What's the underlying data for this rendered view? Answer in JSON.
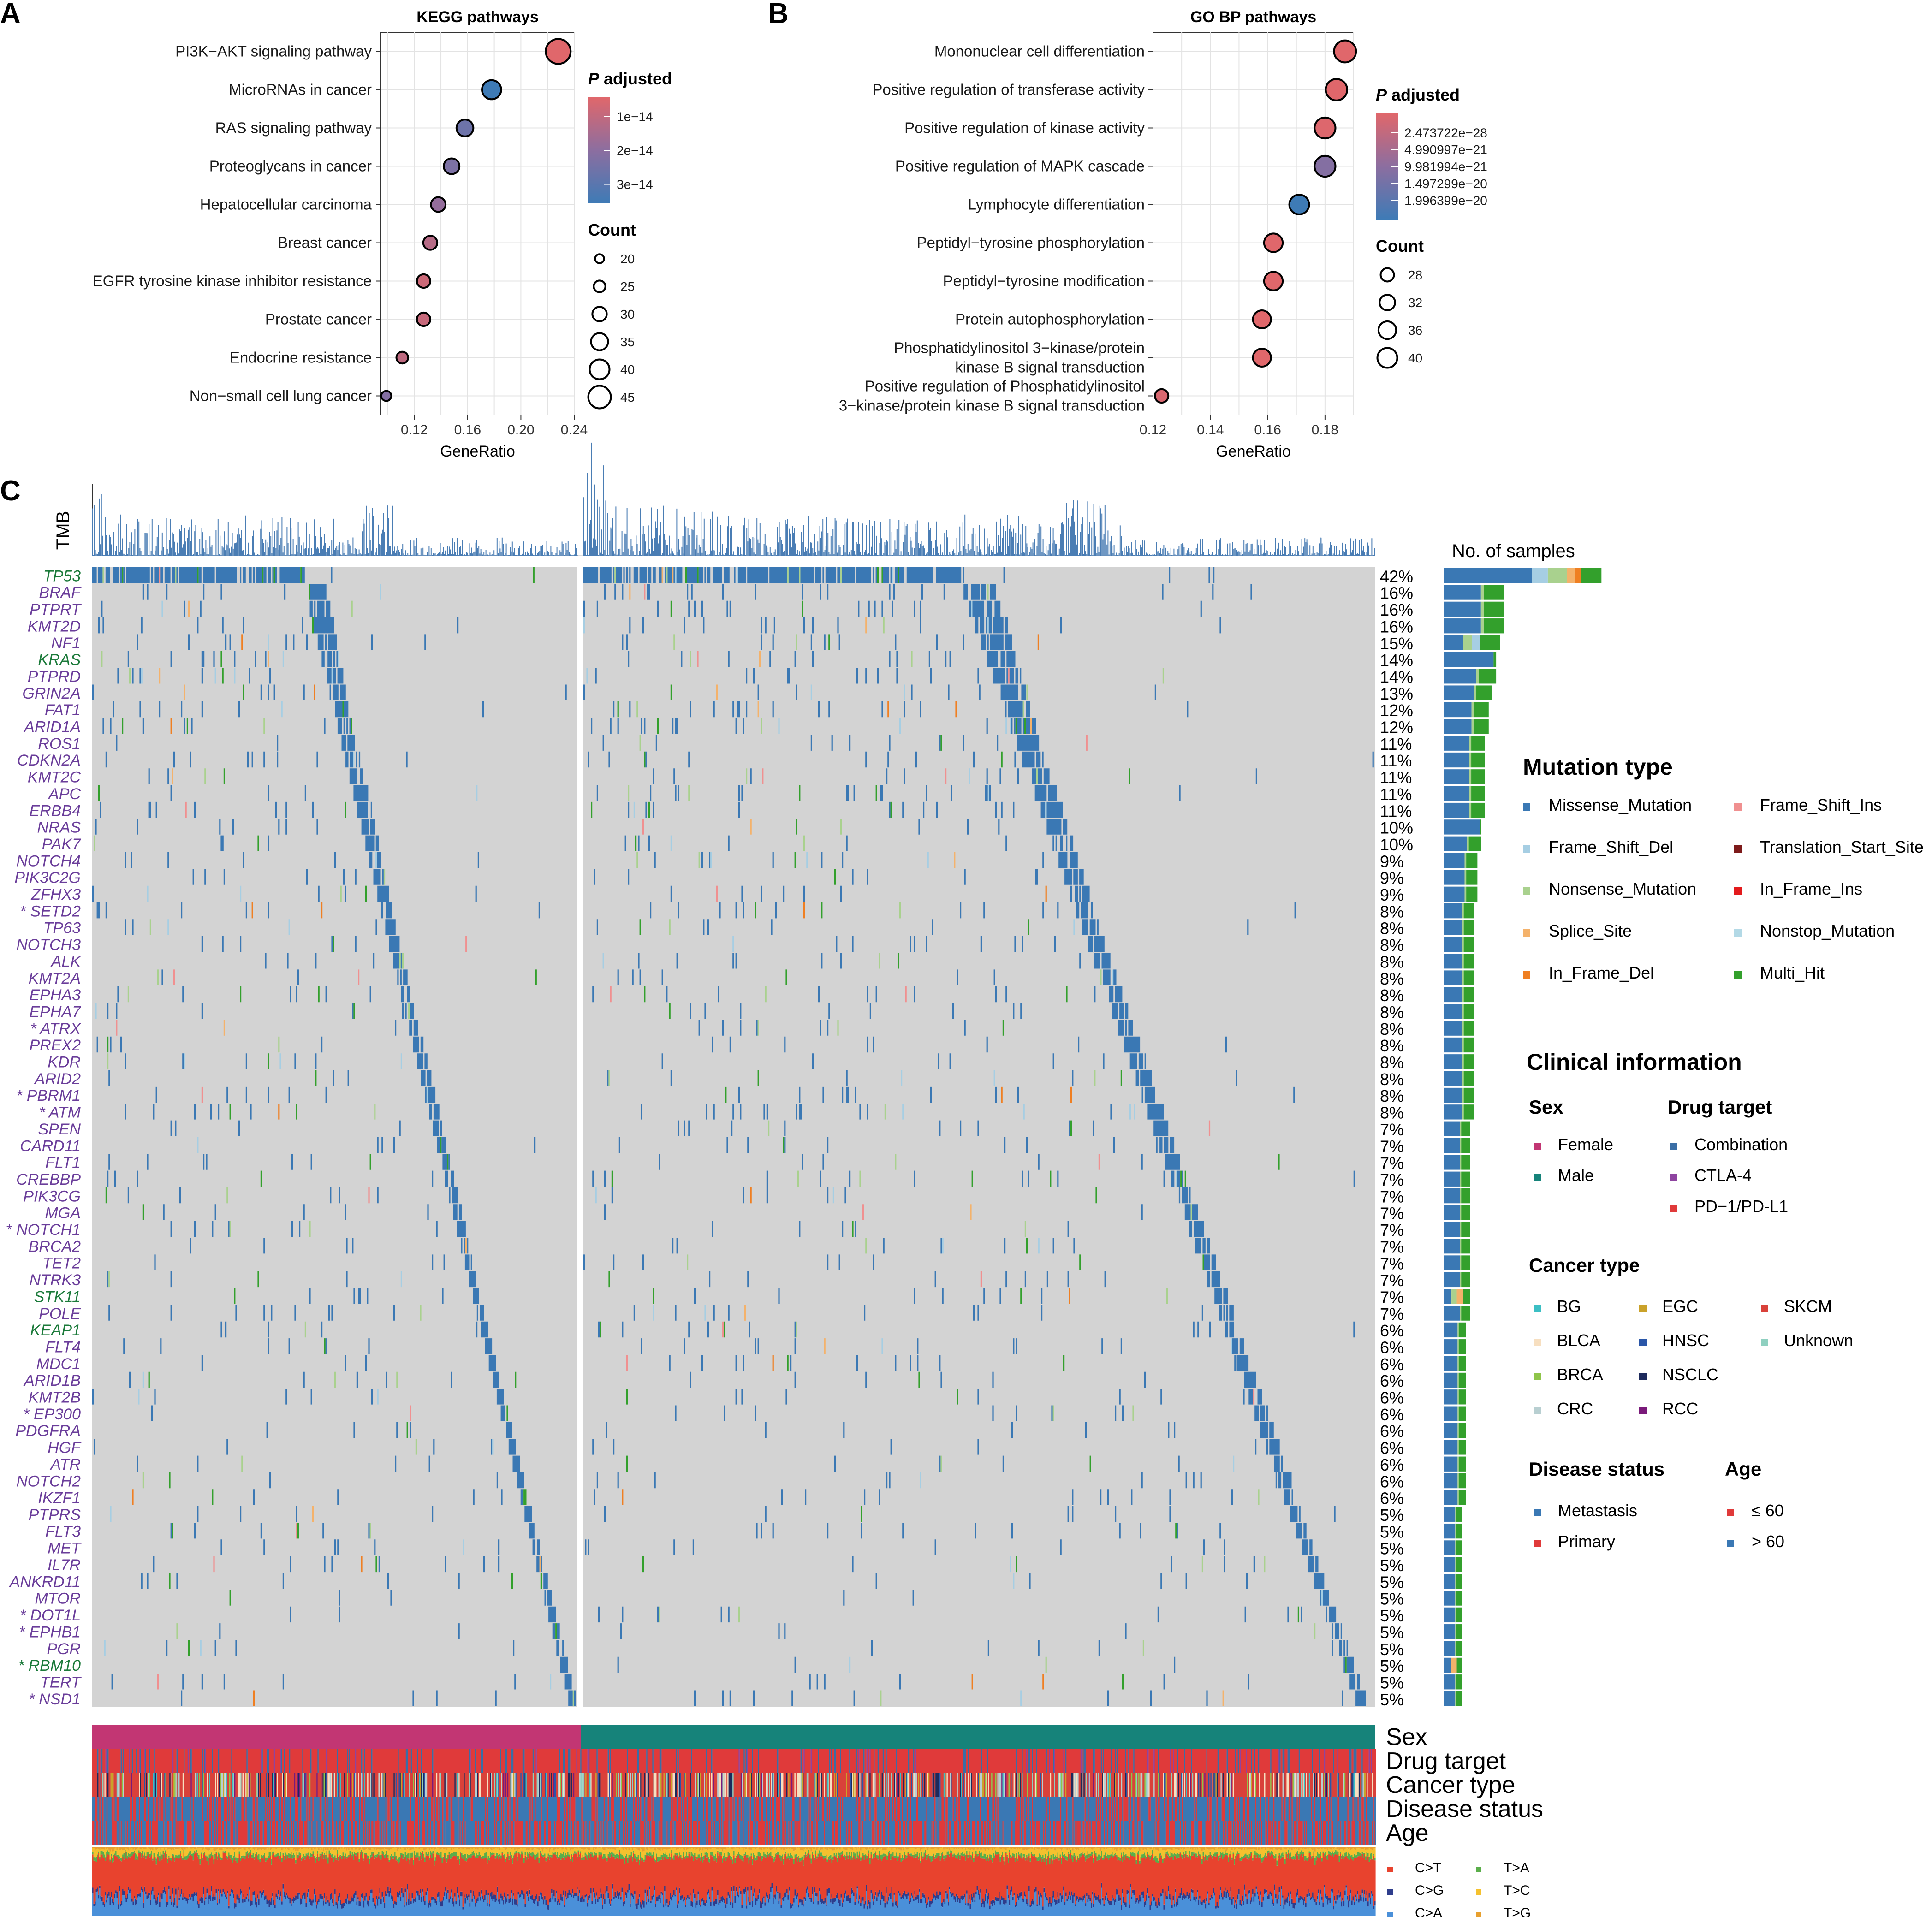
{
  "panel_labels": {
    "a": "A",
    "b": "B",
    "c": "C"
  },
  "colors": {
    "missense": "#3a78b4",
    "frameshift_del": "#a6cee3",
    "nonsense": "#a9d18e",
    "splice": "#f4b26b",
    "inframe_del": "#ef7f22",
    "frameshift_ins": "#f09090",
    "translation_start": "#7d1a1a",
    "inframe_ins": "#e31a1c",
    "nonstop": "#b3d9e6",
    "multi_hit": "#33a02c",
    "grid_bg": "#d3d3d3",
    "tmb": "#4a7db4",
    "female": "#c23673",
    "male": "#16837a",
    "padj_high": "#e0676b",
    "padj_low": "#3e7bb6",
    "gene_purple": "#6a3d9a",
    "gene_green": "#1b7a3a"
  },
  "chart_data": [
    {
      "type": "scatter",
      "id": "kegg",
      "title": "KEGG pathways",
      "xlabel": "GeneRatio",
      "xlim": [
        0.095,
        0.24
      ],
      "xticks": [
        "0.12",
        "0.16",
        "0.20",
        "0.24"
      ],
      "xtick_values": [
        0.12,
        0.16,
        0.2,
        0.24
      ],
      "categories": [
        "PI3K−AKT signaling pathway",
        "MicroRNAs in cancer",
        "RAS signaling pathway",
        "Proteoglycans in cancer",
        "Hepatocellular carcinoma",
        "Breast cancer",
        "EGFR tyrosine kinase inhibitor resistance",
        "Prostate cancer",
        "Endocrine resistance",
        "Non−small cell lung cancer"
      ],
      "x": [
        0.228,
        0.178,
        0.158,
        0.148,
        0.138,
        0.132,
        0.127,
        0.127,
        0.111,
        0.099
      ],
      "count": [
        47,
        37,
        33,
        31,
        29,
        28,
        27,
        27,
        24,
        21
      ],
      "padj_frac": [
        0.0,
        1.0,
        0.7,
        0.6,
        0.45,
        0.25,
        0.12,
        0.15,
        0.2,
        0.55
      ],
      "legend": {
        "color_title_italic": "P",
        "color_title": " adjusted",
        "color_ticks": [
          "1e−14",
          "2e−14",
          "3e−14"
        ],
        "size_title": "Count",
        "size_ticks": [
          "20",
          "25",
          "30",
          "35",
          "40",
          "45"
        ],
        "size_values": [
          20,
          25,
          30,
          35,
          40,
          45
        ]
      }
    },
    {
      "type": "scatter",
      "id": "gobp",
      "title": "GO BP pathways",
      "xlabel": "GeneRatio",
      "xlim": [
        0.12,
        0.19
      ],
      "xticks": [
        "0.12",
        "0.14",
        "0.16",
        "0.18"
      ],
      "xtick_values": [
        0.12,
        0.14,
        0.16,
        0.18
      ],
      "categories": [
        "Mononuclear cell differentiation",
        "Positive regulation of transferase activity",
        "Positive regulation of kinase activity",
        "Positive regulation of MAPK cascade",
        "Lymphocyte differentiation",
        "Peptidyl−tyrosine phosphorylation",
        "Peptidyl−tyrosine modification",
        "Protein autophosphorylation",
        "Phosphatidylinositol 3−kinase/protein\nkinase B signal transduction",
        "Positive regulation of Phosphatidylinositol\n3−kinase/protein kinase B signal transduction"
      ],
      "x": [
        0.187,
        0.184,
        0.18,
        0.18,
        0.171,
        0.162,
        0.162,
        0.158,
        0.158,
        0.123
      ],
      "count": [
        42,
        41,
        40,
        40,
        38,
        36,
        36,
        35,
        35,
        27
      ],
      "padj_frac": [
        0.0,
        0.0,
        0.02,
        0.55,
        1.0,
        0.0,
        0.0,
        0.0,
        0.0,
        0.05
      ],
      "legend": {
        "color_title_italic": "P",
        "color_title": " adjusted",
        "color_ticks": [
          "2.473722e−28",
          "4.990997e−21",
          "9.981994e−21",
          "1.497299e−20",
          "1.996399e−20"
        ],
        "size_title": "Count",
        "size_ticks": [
          "28",
          "32",
          "36",
          "40"
        ],
        "size_values": [
          28,
          32,
          36,
          40
        ]
      }
    },
    {
      "type": "heatmap",
      "id": "oncoplot",
      "tmb_label": "TMB",
      "samples_label": "No. of samples",
      "genes": [
        "TP53",
        "BRAF",
        "PTPRT",
        "KMT2D",
        "NF1",
        "KRAS",
        "PTPRD",
        "GRIN2A",
        "FAT1",
        "ARID1A",
        "ROS1",
        "CDKN2A",
        "KMT2C",
        "APC",
        "ERBB4",
        "NRAS",
        "PAK7",
        "NOTCH4",
        "PIK3C2G",
        "ZFHX3",
        "* SETD2",
        "TP63",
        "NOTCH3",
        "ALK",
        "KMT2A",
        "EPHA3",
        "EPHA7",
        "* ATRX",
        "PREX2",
        "KDR",
        "ARID2",
        "* PBRM1",
        "* ATM",
        "SPEN",
        "CARD11",
        "FLT1",
        "CREBBP",
        "PIK3CG",
        "MGA",
        "* NOTCH1",
        "BRCA2",
        "TET2",
        "NTRK3",
        "STK11",
        "POLE",
        "KEAP1",
        "FLT4",
        "MDC1",
        "ARID1B",
        "KMT2B",
        "* EP300",
        "PDGFRA",
        "HGF",
        "ATR",
        "NOTCH2",
        "IKZF1",
        "PTPRS",
        "FLT3",
        "MET",
        "IL7R",
        "ANKRD11",
        "MTOR",
        "* DOT1L",
        "* EPHB1",
        "PGR",
        "* RBM10",
        "TERT",
        "* NSD1"
      ],
      "gene_color": [
        "green",
        "purple",
        "purple",
        "purple",
        "purple",
        "green",
        "purple",
        "purple",
        "purple",
        "purple",
        "purple",
        "purple",
        "purple",
        "purple",
        "purple",
        "purple",
        "purple",
        "purple",
        "purple",
        "purple",
        "purple",
        "purple",
        "purple",
        "purple",
        "purple",
        "purple",
        "purple",
        "purple",
        "purple",
        "purple",
        "purple",
        "purple",
        "purple",
        "purple",
        "purple",
        "purple",
        "purple",
        "purple",
        "purple",
        "purple",
        "purple",
        "purple",
        "purple",
        "green",
        "purple",
        "green",
        "purple",
        "purple",
        "purple",
        "purple",
        "purple",
        "purple",
        "purple",
        "purple",
        "purple",
        "purple",
        "purple",
        "purple",
        "purple",
        "purple",
        "purple",
        "purple",
        "purple",
        "purple",
        "purple",
        "green",
        "purple",
        "purple"
      ],
      "percents": [
        "42%",
        "16%",
        "16%",
        "16%",
        "15%",
        "14%",
        "14%",
        "13%",
        "12%",
        "12%",
        "11%",
        "11%",
        "11%",
        "11%",
        "11%",
        "10%",
        "10%",
        "9%",
        "9%",
        "9%",
        "8%",
        "8%",
        "8%",
        "8%",
        "8%",
        "8%",
        "8%",
        "8%",
        "8%",
        "8%",
        "8%",
        "8%",
        "8%",
        "7%",
        "7%",
        "7%",
        "7%",
        "7%",
        "7%",
        "7%",
        "7%",
        "7%",
        "7%",
        "7%",
        "7%",
        "6%",
        "6%",
        "6%",
        "6%",
        "6%",
        "6%",
        "6%",
        "6%",
        "6%",
        "6%",
        "6%",
        "5%",
        "5%",
        "5%",
        "5%",
        "5%",
        "5%",
        "5%",
        "5%",
        "5%",
        "5%",
        "5%",
        "5%"
      ],
      "percent_values": [
        42,
        16,
        16,
        16,
        15,
        14,
        14,
        13,
        12,
        12,
        11,
        11,
        11,
        11,
        11,
        10,
        10,
        9,
        9,
        9,
        8,
        8,
        8,
        8,
        8,
        8,
        8,
        8,
        8,
        8,
        8,
        8,
        8,
        7,
        7,
        7,
        7,
        7,
        7,
        7,
        7,
        7,
        7,
        7,
        7,
        6,
        6,
        6,
        6,
        6,
        6,
        6,
        6,
        6,
        6,
        6,
        5,
        5,
        5,
        5,
        5,
        5,
        5,
        5,
        5,
        5,
        5,
        5
      ],
      "annotation_tracks": [
        "Sex",
        "Drug target",
        "Cancer type",
        "Disease status",
        "Age"
      ]
    }
  ],
  "legends": {
    "mutation_type": {
      "title": "Mutation type",
      "items": [
        {
          "label": "Missense_Mutation",
          "color": "#3a78b4"
        },
        {
          "label": "Frame_Shift_Del",
          "color": "#a6cee3"
        },
        {
          "label": "Nonsense_Mutation",
          "color": "#a9d18e"
        },
        {
          "label": "Splice_Site",
          "color": "#f4b26b"
        },
        {
          "label": "In_Frame_Del",
          "color": "#ef7f22"
        },
        {
          "label": "Frame_Shift_Ins",
          "color": "#f09090"
        },
        {
          "label": "Translation_Start_Site",
          "color": "#7d1a1a"
        },
        {
          "label": "In_Frame_Ins",
          "color": "#e31a1c"
        },
        {
          "label": "Nonstop_Mutation",
          "color": "#b3d9e6"
        },
        {
          "label": "Multi_Hit",
          "color": "#33a02c"
        }
      ]
    },
    "clinical_title": "Clinical information",
    "sex": {
      "title": "Sex",
      "items": [
        {
          "label": "Female",
          "color": "#c23673"
        },
        {
          "label": "Male",
          "color": "#16837a"
        }
      ]
    },
    "drug_target": {
      "title": "Drug target",
      "items": [
        {
          "label": "Combination",
          "color": "#3a6ea5"
        },
        {
          "label": "CTLA-4",
          "color": "#8e44a0"
        },
        {
          "label": "PD−1/PD-L1",
          "color": "#e03a3a"
        }
      ]
    },
    "cancer_type": {
      "title": "Cancer type",
      "items": [
        {
          "label": "BG",
          "color": "#3cbfc4"
        },
        {
          "label": "BLCA",
          "color": "#f7dfc0"
        },
        {
          "label": "BRCA",
          "color": "#8fc54a"
        },
        {
          "label": "CRC",
          "color": "#b8cfd1"
        },
        {
          "label": "EGC",
          "color": "#caa22a"
        },
        {
          "label": "HNSC",
          "color": "#2a56a8"
        },
        {
          "label": "NSCLC",
          "color": "#1d2a5c"
        },
        {
          "label": "RCC",
          "color": "#7a1a7a"
        },
        {
          "label": "SKCM",
          "color": "#d9413a"
        },
        {
          "label": "Unknown",
          "color": "#8fd0c0"
        }
      ]
    },
    "disease_status": {
      "title": "Disease status",
      "items": [
        {
          "label": "Metastasis",
          "color": "#3a78b4"
        },
        {
          "label": "Primary",
          "color": "#e03a3a"
        }
      ]
    },
    "age": {
      "title": "Age",
      "items": [
        {
          "label": "≤ 60",
          "color": "#e03a3a"
        },
        {
          "label": "> 60",
          "color": "#3a78b4"
        }
      ]
    },
    "substitution": {
      "items": [
        {
          "label": "C>T",
          "color": "#e8432e"
        },
        {
          "label": "C>G",
          "color": "#2e3d8c"
        },
        {
          "label": "C>A",
          "color": "#4a90d9"
        },
        {
          "label": "T>A",
          "color": "#5aae4a"
        },
        {
          "label": "T>C",
          "color": "#f5c12e"
        },
        {
          "label": "T>G",
          "color": "#e8a02e"
        }
      ]
    }
  }
}
